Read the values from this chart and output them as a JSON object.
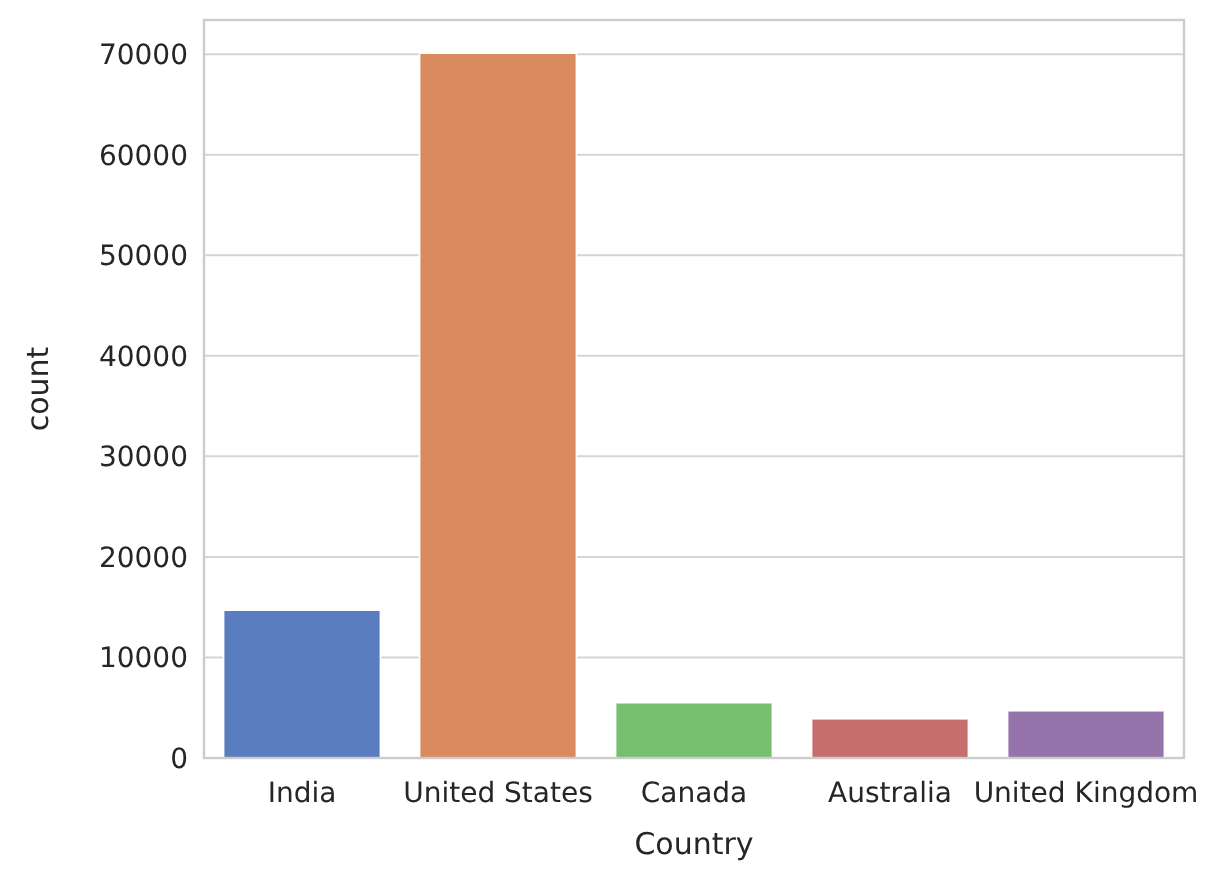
{
  "chart_data": {
    "type": "bar",
    "xlabel": "Country",
    "ylabel": "count",
    "categories": [
      "India",
      "United States",
      "Canada",
      "Australia",
      "United Kingdom"
    ],
    "values": [
      14700,
      70100,
      5500,
      3900,
      4700
    ],
    "colors": [
      "#5a7dbf",
      "#d98a5e",
      "#77bf6f",
      "#c66e6d",
      "#9474ab"
    ],
    "ylim": [
      0,
      73400
    ],
    "yticks": [
      0,
      10000,
      20000,
      30000,
      40000,
      50000,
      60000,
      70000
    ],
    "grid": "y"
  }
}
